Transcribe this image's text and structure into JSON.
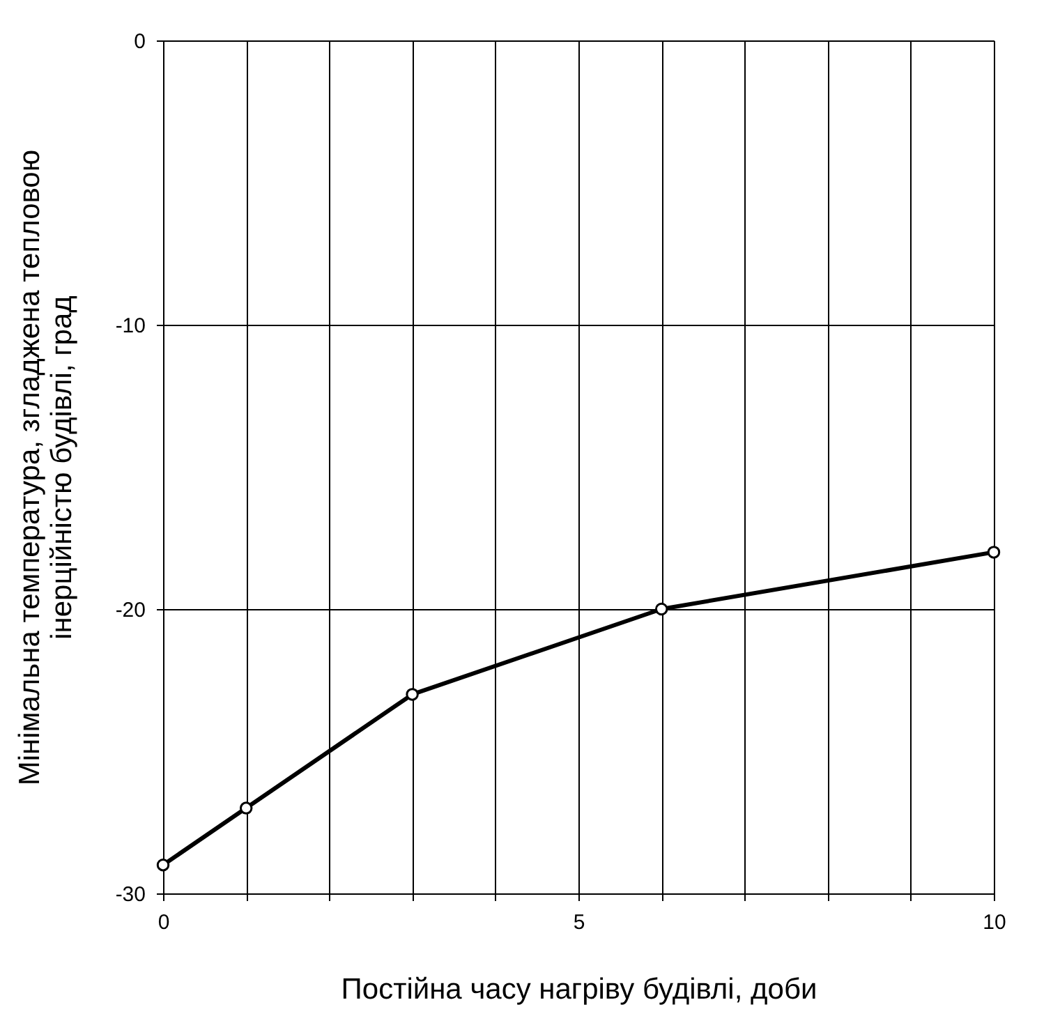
{
  "chart_data": {
    "type": "line",
    "xlabel": "Постійна часу нагріву будівлі, доби",
    "ylabel": "Мінімальна температура, згладжена тепловою інерційністю будівлі, град",
    "x": [
      0,
      1,
      3,
      6,
      10
    ],
    "series": [
      {
        "color": "#000000",
        "values": [
          -29,
          -27,
          -23,
          -20,
          -18
        ]
      }
    ],
    "xlim": [
      0,
      10
    ],
    "xticks": [
      0,
      {
        "value": 1,
        "label": null
      },
      {
        "value": 2,
        "label": null
      },
      {
        "value": 3,
        "label": null
      },
      {
        "value": 4,
        "label": null
      },
      5,
      {
        "value": 6,
        "label": null
      },
      {
        "value": 7,
        "label": null
      },
      {
        "value": 8,
        "label": null
      },
      {
        "value": 9,
        "label": null
      },
      10
    ],
    "ylim": [
      -30,
      0
    ],
    "yticks": [
      -30,
      -20,
      -10,
      0
    ],
    "grid": true,
    "marker": "circle",
    "line_style": "solid"
  }
}
